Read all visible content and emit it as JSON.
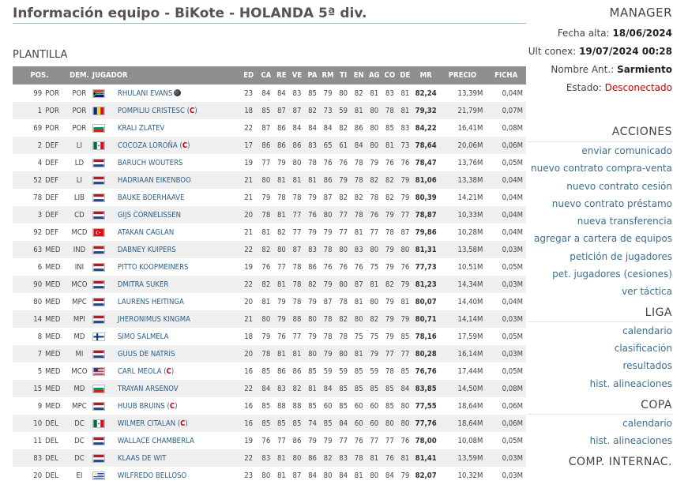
{
  "page": {
    "title": "Información equipo - BiKote - HOLANDA 5ª div.",
    "section_title": "PLANTILLA"
  },
  "table": {
    "headers": [
      "POS.",
      "DEM.",
      "JUGADOR",
      "ED",
      "CA",
      "RE",
      "VE",
      "PA",
      "RM",
      "TI",
      "EN",
      "AG",
      "CO",
      "DE",
      "MR",
      "PRECIO",
      "FICHA"
    ],
    "rows": [
      {
        "num": "99",
        "pos": "POR",
        "dem": "POR",
        "flag": "za",
        "name": "RHULANI EVANS",
        "mark": "ball",
        "ed": "23",
        "ca": "84",
        "re": "84",
        "ve": "83",
        "pa": "85",
        "rm": "79",
        "ti": "80",
        "en": "82",
        "ag": "81",
        "co": "83",
        "de": "81",
        "mr": "82,24",
        "precio": "13,39M",
        "ficha": "0,04M"
      },
      {
        "num": "1",
        "pos": "POR",
        "dem": "POR",
        "flag": "ro",
        "name": "POMPILIU CRISTESC",
        "mark": "C",
        "ed": "18",
        "ca": "85",
        "re": "87",
        "ve": "87",
        "pa": "82",
        "rm": "73",
        "ti": "59",
        "en": "81",
        "ag": "80",
        "co": "78",
        "de": "81",
        "mr": "79,32",
        "precio": "21,79M",
        "ficha": "0,07M"
      },
      {
        "num": "69",
        "pos": "POR",
        "dem": "POR",
        "flag": "bg",
        "name": "KRALI ZLATEV",
        "mark": "",
        "ed": "22",
        "ca": "87",
        "re": "86",
        "ve": "84",
        "pa": "84",
        "rm": "84",
        "ti": "82",
        "en": "86",
        "ag": "80",
        "co": "85",
        "de": "83",
        "mr": "84,22",
        "precio": "16,41M",
        "ficha": "0,08M"
      },
      {
        "num": "2",
        "pos": "DEF",
        "dem": "LI",
        "flag": "mx",
        "name": "COCOZA LOROÑA",
        "mark": "C",
        "ed": "17",
        "ca": "86",
        "re": "86",
        "ve": "86",
        "pa": "83",
        "rm": "65",
        "ti": "61",
        "en": "84",
        "ag": "80",
        "co": "81",
        "de": "73",
        "mr": "78,64",
        "precio": "20,06M",
        "ficha": "0,06M"
      },
      {
        "num": "4",
        "pos": "DEF",
        "dem": "LD",
        "flag": "nl",
        "name": "BARUCH WOUTERS",
        "mark": "",
        "ed": "19",
        "ca": "77",
        "re": "79",
        "ve": "80",
        "pa": "78",
        "rm": "76",
        "ti": "76",
        "en": "78",
        "ag": "79",
        "co": "76",
        "de": "76",
        "mr": "78,47",
        "precio": "13,76M",
        "ficha": "0,05M"
      },
      {
        "num": "52",
        "pos": "DEF",
        "dem": "LI",
        "flag": "nl",
        "name": "HADRIAAN EIKENBOO",
        "mark": "",
        "ed": "21",
        "ca": "80",
        "re": "81",
        "ve": "81",
        "pa": "81",
        "rm": "86",
        "ti": "79",
        "en": "78",
        "ag": "82",
        "co": "82",
        "de": "79",
        "mr": "81,06",
        "precio": "13,38M",
        "ficha": "0,04M"
      },
      {
        "num": "78",
        "pos": "DEF",
        "dem": "LIB",
        "flag": "nl",
        "name": "BAUKE BOERHAAVE",
        "mark": "",
        "ed": "21",
        "ca": "79",
        "re": "78",
        "ve": "78",
        "pa": "79",
        "rm": "87",
        "ti": "82",
        "en": "82",
        "ag": "78",
        "co": "82",
        "de": "79",
        "mr": "80,39",
        "precio": "14,21M",
        "ficha": "0,04M"
      },
      {
        "num": "3",
        "pos": "DEF",
        "dem": "CD",
        "flag": "nl",
        "name": "GIJS CORNELISSEN",
        "mark": "",
        "ed": "20",
        "ca": "78",
        "re": "81",
        "ve": "77",
        "pa": "76",
        "rm": "80",
        "ti": "77",
        "en": "78",
        "ag": "76",
        "co": "79",
        "de": "77",
        "mr": "78,87",
        "precio": "10,33M",
        "ficha": "0,04M"
      },
      {
        "num": "92",
        "pos": "DEF",
        "dem": "MCD",
        "flag": "tr",
        "name": "ATAKAN CAGLAN",
        "mark": "",
        "ed": "21",
        "ca": "81",
        "re": "82",
        "ve": "77",
        "pa": "79",
        "rm": "79",
        "ti": "77",
        "en": "81",
        "ag": "77",
        "co": "78",
        "de": "87",
        "mr": "79,86",
        "precio": "10,28M",
        "ficha": "0,04M"
      },
      {
        "num": "63",
        "pos": "MED",
        "dem": "IND",
        "flag": "nl",
        "name": "DABNEY KUIPERS",
        "mark": "",
        "ed": "22",
        "ca": "82",
        "re": "80",
        "ve": "87",
        "pa": "83",
        "rm": "78",
        "ti": "80",
        "en": "83",
        "ag": "80",
        "co": "79",
        "de": "80",
        "mr": "81,31",
        "precio": "13,58M",
        "ficha": "0,03M"
      },
      {
        "num": "6",
        "pos": "MED",
        "dem": "INI",
        "flag": "nl",
        "name": "PITTO KOOPMEINERS",
        "mark": "",
        "ed": "19",
        "ca": "76",
        "re": "77",
        "ve": "78",
        "pa": "86",
        "rm": "76",
        "ti": "76",
        "en": "76",
        "ag": "75",
        "co": "79",
        "de": "76",
        "mr": "77,73",
        "precio": "10,51M",
        "ficha": "0,05M"
      },
      {
        "num": "90",
        "pos": "MED",
        "dem": "MCO",
        "flag": "nl",
        "name": "DMITRA SUKER",
        "mark": "",
        "ed": "22",
        "ca": "82",
        "re": "81",
        "ve": "78",
        "pa": "82",
        "rm": "79",
        "ti": "80",
        "en": "87",
        "ag": "81",
        "co": "82",
        "de": "79",
        "mr": "81,23",
        "precio": "14,34M",
        "ficha": "0,03M"
      },
      {
        "num": "80",
        "pos": "MED",
        "dem": "MPC",
        "flag": "nl",
        "name": "LAURENS HEITINGA",
        "mark": "",
        "ed": "20",
        "ca": "81",
        "re": "79",
        "ve": "78",
        "pa": "79",
        "rm": "87",
        "ti": "78",
        "en": "81",
        "ag": "80",
        "co": "79",
        "de": "81",
        "mr": "80,07",
        "precio": "14,40M",
        "ficha": "0,04M"
      },
      {
        "num": "14",
        "pos": "MED",
        "dem": "MPI",
        "flag": "nl",
        "name": "JHERONIMUS KINGMA",
        "mark": "",
        "ed": "21",
        "ca": "80",
        "re": "79",
        "ve": "88",
        "pa": "80",
        "rm": "78",
        "ti": "82",
        "en": "80",
        "ag": "82",
        "co": "79",
        "de": "79",
        "mr": "80,71",
        "precio": "14,14M",
        "ficha": "0,03M"
      },
      {
        "num": "8",
        "pos": "MED",
        "dem": "MD",
        "flag": "fi",
        "name": "SIMO SALMELA",
        "mark": "",
        "ed": "18",
        "ca": "79",
        "re": "76",
        "ve": "77",
        "pa": "79",
        "rm": "78",
        "ti": "78",
        "en": "75",
        "ag": "75",
        "co": "79",
        "de": "85",
        "mr": "78,16",
        "precio": "17,59M",
        "ficha": "0,05M"
      },
      {
        "num": "7",
        "pos": "MED",
        "dem": "MI",
        "flag": "nl",
        "name": "GUUS DE NATRIS",
        "mark": "",
        "ed": "20",
        "ca": "78",
        "re": "81",
        "ve": "81",
        "pa": "80",
        "rm": "79",
        "ti": "80",
        "en": "81",
        "ag": "79",
        "co": "77",
        "de": "77",
        "mr": "80,28",
        "precio": "16,14M",
        "ficha": "0,03M"
      },
      {
        "num": "5",
        "pos": "MED",
        "dem": "MCO",
        "flag": "us",
        "name": "CARL MEOLA",
        "mark": "C",
        "ed": "16",
        "ca": "85",
        "re": "86",
        "ve": "86",
        "pa": "85",
        "rm": "59",
        "ti": "59",
        "en": "85",
        "ag": "59",
        "co": "78",
        "de": "85",
        "mr": "76,76",
        "precio": "17,44M",
        "ficha": "0,05M"
      },
      {
        "num": "15",
        "pos": "MED",
        "dem": "MD",
        "flag": "bg",
        "name": "TRAYAN ARSENOV",
        "mark": "",
        "ed": "22",
        "ca": "84",
        "re": "83",
        "ve": "82",
        "pa": "81",
        "rm": "84",
        "ti": "85",
        "en": "85",
        "ag": "85",
        "co": "85",
        "de": "84",
        "mr": "83,85",
        "precio": "14,50M",
        "ficha": "0,08M"
      },
      {
        "num": "9",
        "pos": "MED",
        "dem": "MPC",
        "flag": "nl",
        "name": "HUUB BRUINS",
        "mark": "C",
        "ed": "16",
        "ca": "85",
        "re": "88",
        "ve": "88",
        "pa": "85",
        "rm": "60",
        "ti": "85",
        "en": "60",
        "ag": "60",
        "co": "85",
        "de": "80",
        "mr": "77,55",
        "precio": "18,64M",
        "ficha": "0,06M"
      },
      {
        "num": "10",
        "pos": "DEL",
        "dem": "DC",
        "flag": "mx",
        "name": "WILMER CITALAN",
        "mark": "C",
        "ed": "16",
        "ca": "85",
        "re": "85",
        "ve": "85",
        "pa": "74",
        "rm": "85",
        "ti": "84",
        "en": "60",
        "ag": "60",
        "co": "80",
        "de": "80",
        "mr": "77,76",
        "precio": "18,64M",
        "ficha": "0,06M"
      },
      {
        "num": "11",
        "pos": "DEL",
        "dem": "DC",
        "flag": "nl",
        "name": "WALLACE CHAMBERLA",
        "mark": "",
        "ed": "19",
        "ca": "76",
        "re": "77",
        "ve": "86",
        "pa": "79",
        "rm": "79",
        "ti": "77",
        "en": "76",
        "ag": "77",
        "co": "77",
        "de": "76",
        "mr": "78,00",
        "precio": "10,08M",
        "ficha": "0,05M"
      },
      {
        "num": "83",
        "pos": "DEL",
        "dem": "DC",
        "flag": "nl",
        "name": "KLAAS DE WIT",
        "mark": "",
        "ed": "22",
        "ca": "83",
        "re": "81",
        "ve": "80",
        "pa": "86",
        "rm": "82",
        "ti": "83",
        "en": "78",
        "ag": "81",
        "co": "76",
        "de": "81",
        "mr": "81,41",
        "precio": "13,59M",
        "ficha": "0,03M"
      },
      {
        "num": "20",
        "pos": "DEL",
        "dem": "EI",
        "flag": "uy",
        "name": "WILFREDO BELLOSO",
        "mark": "",
        "ed": "23",
        "ca": "80",
        "re": "81",
        "ve": "87",
        "pa": "84",
        "rm": "80",
        "ti": "84",
        "en": "81",
        "ag": "80",
        "co": "84",
        "de": "79",
        "mr": "82,07",
        "precio": "10,32M",
        "ficha": "0,03M"
      }
    ]
  },
  "sidebar": {
    "manager_title": "MANAGER",
    "fecha_alta_label": "Fecha alta:",
    "fecha_alta_value": "18/06/2024",
    "ult_conex_label": "Ult conex:",
    "ult_conex_value": "19/07/2024 00:28",
    "nombre_ant_label": "Nombre Ant.:",
    "nombre_ant_value": "Sarmiento",
    "estado_label": "Estado:",
    "estado_value": "Desconectado",
    "acciones_title": "ACCIONES",
    "acciones": [
      "enviar comunicado",
      "nuevo contrato compra-venta",
      "nuevo contrato cesión",
      "nuevo contrato préstamo",
      "nueva transferencia",
      "agregar a cartera de equipos",
      "petición de jugadores",
      "pet. jugadores (cesiones)",
      "ver táctica"
    ],
    "liga_title": "LIGA",
    "liga": [
      "calendario",
      "clasificación",
      "resultados",
      "hist. alineaciones"
    ],
    "copa_title": "COPA",
    "copa": [
      "calendario",
      "hist. alineaciones"
    ],
    "comp_title": "COMP. INTERNAC."
  },
  "colors": {
    "header_bg": "#8f8f8f",
    "link": "#3d6d8f",
    "captain": "#cc0000",
    "status_offline": "#cc0000",
    "row_alt": "#efefef"
  }
}
